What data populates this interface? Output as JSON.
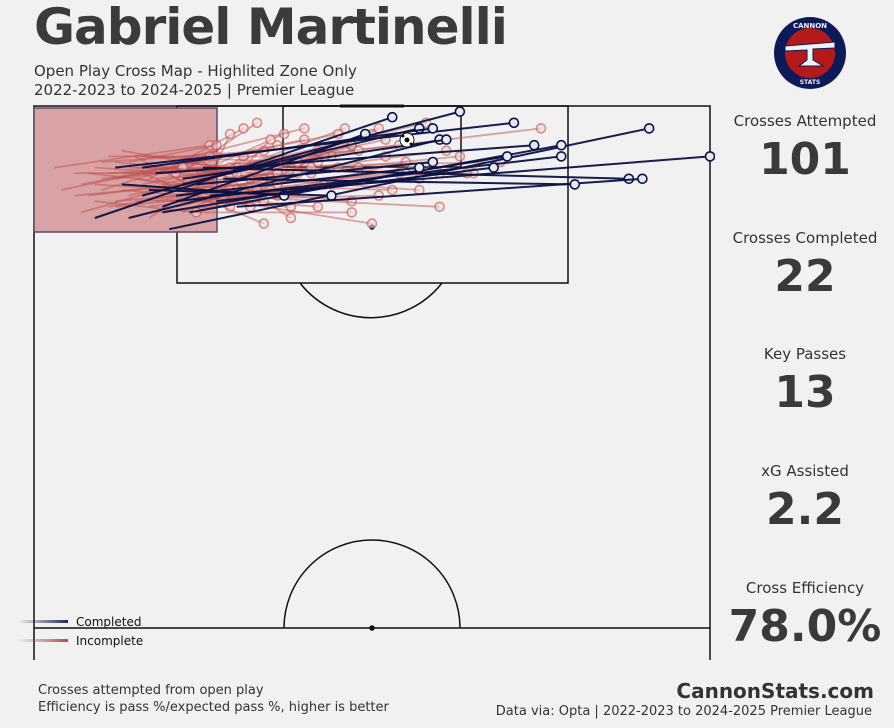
{
  "player_name": "Gabriel Martinelli",
  "subtitle_line1": "Open Play Cross Map - Highlited Zone Only",
  "subtitle_line2": "2022-2023 to 2024-2025 | Premier League",
  "logo": {
    "top_text": "CANNON",
    "bottom_text": "STATS",
    "ring_color": "#0c1a57",
    "inner_color": "#b51a1a"
  },
  "stats": [
    {
      "label": "Crosses Attempted",
      "value": "101"
    },
    {
      "label": "Crosses Completed",
      "value": "22"
    },
    {
      "label": "Key Passes",
      "value": "13"
    },
    {
      "label": "xG Assisted",
      "value": "2.2"
    },
    {
      "label": "Cross Efficiency",
      "value": "78.0%"
    }
  ],
  "legend": [
    {
      "label": "Completed",
      "color": "#0a1245"
    },
    {
      "label": "Incomplete",
      "color": "#b03a3a"
    }
  ],
  "footnote_line1": "Crosses attempted from open play",
  "footnote_line2": "Efficiency is pass %/expected pass %, higher is better",
  "brand": "CannonStats.com",
  "source": "Data via: Opta | 2022-2023 to 2024-2025 Premier League",
  "colors": {
    "completed": "#0a1245",
    "incomplete": "#c0504d",
    "zone_fill": "#d9a2a4",
    "zone_edge": "#5a4a6a",
    "background": "#f1f1f1"
  },
  "chart_data": {
    "type": "pitch-pass-map",
    "title": "Gabriel Martinelli",
    "subtitle": "Open Play Cross Map - Highlited Zone Only",
    "series": [
      {
        "name": "Completed",
        "passes": [
          [
            12,
            11,
            71,
            3
          ],
          [
            16,
            16,
            63,
            1
          ],
          [
            19,
            18,
            49,
            5
          ],
          [
            20,
            22,
            91,
            4
          ],
          [
            22,
            14,
            57,
            4
          ],
          [
            14,
            20,
            60,
            6
          ],
          [
            24,
            14,
            59,
            10
          ],
          [
            9,
            20,
            53,
            2
          ],
          [
            18,
            12,
            74,
            7
          ],
          [
            21,
            17,
            78,
            9
          ],
          [
            23,
            19,
            78,
            7
          ],
          [
            27,
            17,
            68,
            11
          ],
          [
            13,
            14,
            37,
            16
          ],
          [
            25,
            11,
            88,
            13
          ],
          [
            26,
            16,
            100,
            9
          ],
          [
            17,
            15,
            44,
            16
          ],
          [
            19,
            19,
            70,
            9
          ],
          [
            30,
            18,
            90,
            13
          ],
          [
            28,
            13,
            80,
            14
          ],
          [
            16,
            11,
            59,
            4
          ],
          [
            21,
            16,
            57,
            11
          ],
          [
            22,
            13,
            61,
            6
          ]
        ]
      },
      {
        "name": "Incomplete",
        "passes": [
          [
            3,
            11,
            26,
            7
          ],
          [
            8,
            16,
            61,
            8
          ],
          [
            12,
            13,
            75,
            4
          ],
          [
            15,
            9,
            29,
            18
          ],
          [
            18,
            15,
            33,
            15
          ],
          [
            20,
            17,
            57,
            13
          ],
          [
            4,
            15,
            40,
            6
          ],
          [
            6,
            12,
            21,
            12
          ],
          [
            10,
            13,
            54,
            7
          ],
          [
            13,
            8,
            37,
            13
          ],
          [
            16,
            12,
            34,
            21
          ],
          [
            19,
            14,
            58,
            3
          ],
          [
            21,
            17,
            47,
            7
          ],
          [
            23,
            13,
            44,
            9
          ],
          [
            25,
            10,
            38,
            20
          ],
          [
            27,
            18,
            55,
            10
          ],
          [
            28,
            15,
            47,
            17
          ],
          [
            29,
            11,
            69,
            10
          ],
          [
            24,
            17,
            38,
            18
          ],
          [
            22,
            14,
            36,
            12
          ],
          [
            17,
            20,
            31,
            9
          ],
          [
            12,
            17,
            31,
            15
          ],
          [
            9,
            14,
            36,
            16
          ],
          [
            11,
            9,
            43,
            9
          ],
          [
            14,
            11,
            65,
            12
          ],
          [
            18,
            13,
            42,
            10
          ],
          [
            26,
            12,
            48,
            8
          ],
          [
            30,
            14,
            60,
            12
          ],
          [
            20,
            12,
            27,
            9
          ],
          [
            15,
            17,
            51,
            16
          ],
          [
            7,
            19,
            30,
            11
          ],
          [
            27,
            11,
            52,
            9
          ],
          [
            10,
            10,
            34,
            8
          ],
          [
            13,
            15,
            42,
            18
          ],
          [
            17,
            18,
            56,
            11
          ],
          [
            22,
            10,
            29,
            11
          ],
          [
            24,
            15,
            50,
            5
          ],
          [
            19,
            11,
            64,
            12
          ],
          [
            6,
            16,
            32,
            13
          ],
          [
            29,
            17,
            50,
            21
          ],
          [
            11,
            18,
            45,
            11
          ],
          [
            16,
            14,
            47,
            7
          ],
          [
            23,
            17,
            39,
            15
          ],
          [
            25,
            14,
            41,
            12
          ],
          [
            28,
            12,
            46,
            4
          ],
          [
            21,
            13,
            32,
            18
          ],
          [
            14,
            10,
            27,
            7
          ],
          [
            8,
            12,
            30,
            15
          ],
          [
            12,
            18,
            43,
            14
          ],
          [
            20,
            15,
            54,
            12
          ],
          [
            26,
            16,
            60,
            18
          ],
          [
            18,
            19,
            34,
            17
          ],
          [
            24,
            12,
            37,
            5
          ],
          [
            9,
            17,
            24,
            19
          ],
          [
            15,
            13,
            28,
            16
          ],
          [
            27,
            14,
            53,
            15
          ],
          [
            22,
            19,
            42,
            8
          ],
          [
            13,
            12,
            48,
            11
          ],
          [
            19,
            16,
            36,
            7
          ],
          [
            16,
            9,
            39,
            10
          ],
          [
            10,
            15,
            26,
            9
          ],
          [
            29,
            13,
            63,
            9
          ],
          [
            7,
            14,
            45,
            5
          ],
          [
            23,
            11,
            33,
            3
          ],
          [
            17,
            13,
            31,
            4
          ],
          [
            21,
            18,
            36,
            14
          ],
          [
            25,
            17,
            44,
            14
          ],
          [
            11,
            12,
            22,
            11
          ],
          [
            28,
            18,
            41,
            11
          ],
          [
            14,
            16,
            52,
            6
          ],
          [
            20,
            10,
            40,
            4
          ],
          [
            26,
            13,
            29,
            5
          ],
          [
            12,
            10,
            35,
            13
          ],
          [
            18,
            17,
            39,
            12
          ],
          [
            24,
            19,
            47,
            19
          ],
          [
            15,
            11,
            30,
            12
          ],
          [
            30,
            16,
            51,
            4
          ],
          [
            9,
            11,
            57,
            15
          ],
          [
            27,
            16,
            35,
            6
          ]
        ]
      }
    ],
    "pitch_x_range": [
      0,
      100
    ],
    "pitch_y_range": [
      0,
      100
    ],
    "highlight_zone": {
      "x": [
        0,
        30
      ],
      "y": [
        0,
        20
      ]
    },
    "grid": false,
    "legend_position": "bottom-left"
  }
}
